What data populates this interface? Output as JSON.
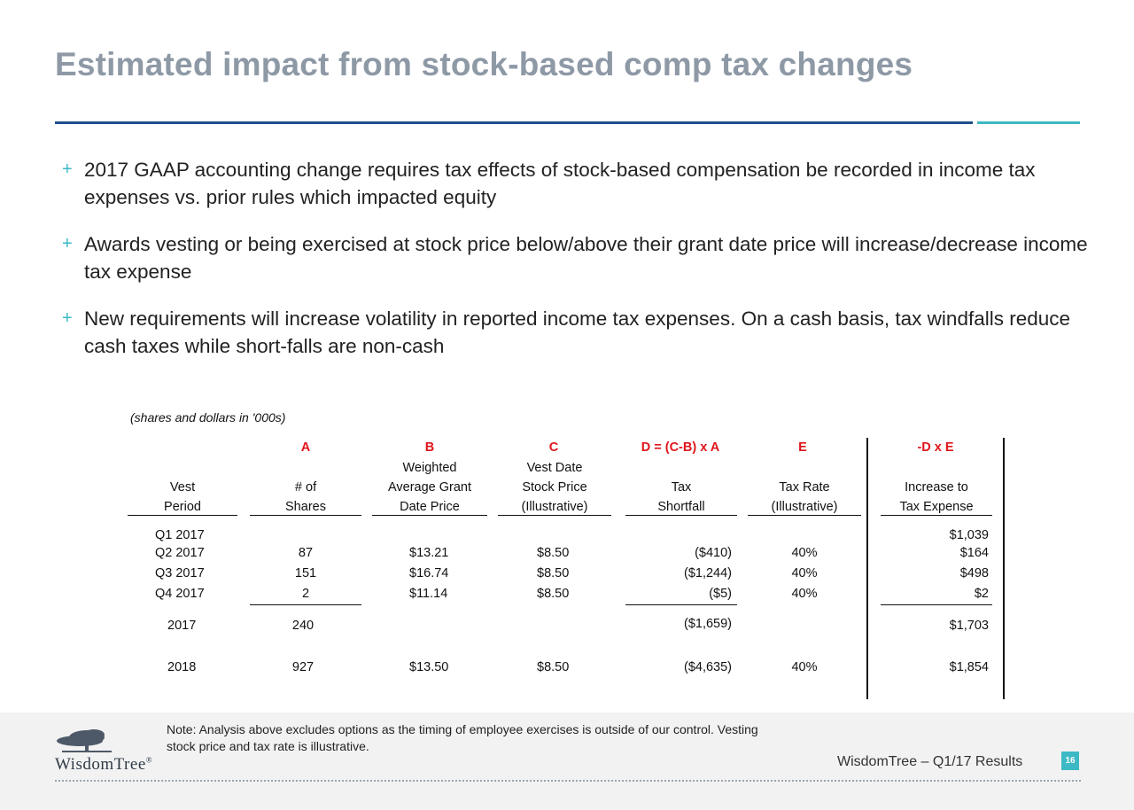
{
  "slide": {
    "title": "Estimated impact from stock-based comp tax changes",
    "bullets": [
      "2017 GAAP accounting change requires tax effects of stock-based compensation be recorded in income tax expenses vs. prior rules which impacted equity",
      "Awards vesting or being exercised at stock price below/above their grant date price will increase/decrease income tax expense",
      "New requirements will increase volatility in reported income tax expenses. On a cash basis, tax windfalls reduce cash taxes while short-falls are non-cash"
    ],
    "bullet_marker": "+"
  },
  "table": {
    "units_note": "(shares and dollars in '000s)",
    "letters": [
      "A",
      "B",
      "C",
      "D = (C-B) x A",
      "E",
      "-D x E"
    ],
    "headers": {
      "vest": [
        "Vest",
        "Period"
      ],
      "shares": [
        "# of",
        "Shares"
      ],
      "grant": [
        "Weighted",
        "Average Grant",
        "Date Price"
      ],
      "stock": [
        "Vest Date",
        "Stock Price",
        "(Illustrative)"
      ],
      "shortfall": [
        "Tax",
        "Shortfall"
      ],
      "rate": [
        "Tax Rate",
        "(Illustrative)"
      ],
      "increase": [
        "Increase to",
        "Tax Expense"
      ]
    },
    "rows": [
      {
        "period": "Q1 2017",
        "shares": "",
        "grant": "",
        "stock": "",
        "shortfall": "",
        "rate": "",
        "increase": "$1,039"
      },
      {
        "period": "Q2 2017",
        "shares": "87",
        "grant": "$13.21",
        "stock": "$8.50",
        "shortfall": "($410)",
        "rate": "40%",
        "increase": "$164"
      },
      {
        "period": "Q3 2017",
        "shares": "151",
        "grant": "$16.74",
        "stock": "$8.50",
        "shortfall": "($1,244)",
        "rate": "40%",
        "increase": "$498"
      },
      {
        "period": "Q4 2017",
        "shares": "2",
        "grant": "$11.14",
        "stock": "$8.50",
        "shortfall": "($5)",
        "rate": "40%",
        "increase": "$2"
      },
      {
        "period": "2017",
        "shares": "240",
        "grant": "",
        "stock": "",
        "shortfall": "($1,659)",
        "rate": "",
        "increase": "$1,703"
      },
      {
        "period": "2018",
        "shares": "927",
        "grant": "$13.50",
        "stock": "$8.50",
        "shortfall": "($4,635)",
        "rate": "40%",
        "increase": "$1,854"
      }
    ]
  },
  "footer": {
    "note": "Note: Analysis above excludes options as the timing of employee exercises is outside of our control.  Vesting stock price and tax rate is illustrative.",
    "logo_text": "WisdomTree",
    "logo_mark": "®",
    "label": "WisdomTree – Q1/17 Results",
    "page_number": "16"
  },
  "colors": {
    "title": "#8e99a6",
    "rule_blue": "#1f4e8c",
    "rule_teal": "#3cb9c4",
    "accent_red": "#e0161c",
    "footer_bg": "#f2f2f2"
  }
}
